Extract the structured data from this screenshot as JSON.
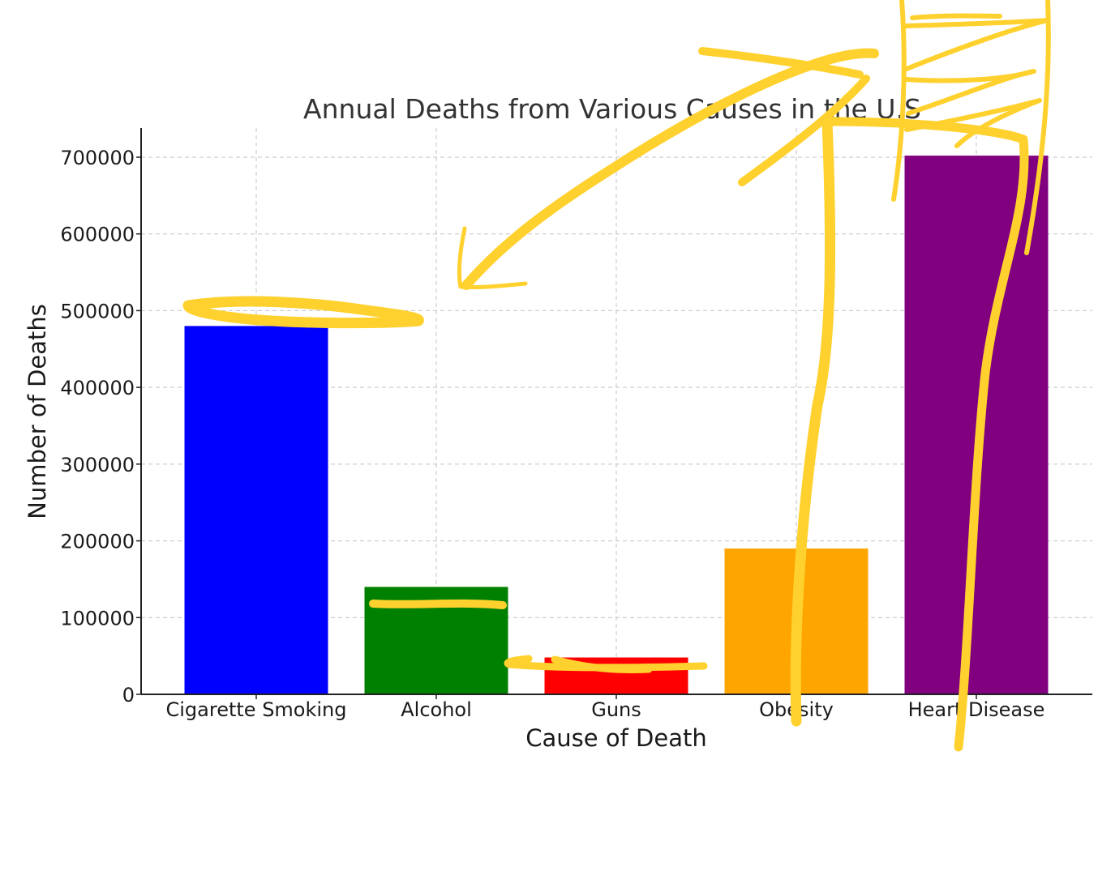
{
  "chart_data": {
    "type": "bar",
    "title": "Annual Deaths from Various Causes in the U.S",
    "xlabel": "Cause of Death",
    "ylabel": "Number of Deaths",
    "categories": [
      "Cigarette Smoking",
      "Alcohol",
      "Guns",
      "Obesity",
      "Heart Disease"
    ],
    "values": [
      480000,
      140000,
      48000,
      190000,
      702000
    ],
    "colors": [
      "#0000FF",
      "#008000",
      "#FF0000",
      "#FFA500",
      "#800080"
    ],
    "ylim": [
      0,
      740000
    ],
    "yticks": [
      0,
      100000,
      200000,
      300000,
      400000,
      500000,
      600000,
      700000
    ],
    "grid": true,
    "annotation_color": "#FFD12E"
  }
}
